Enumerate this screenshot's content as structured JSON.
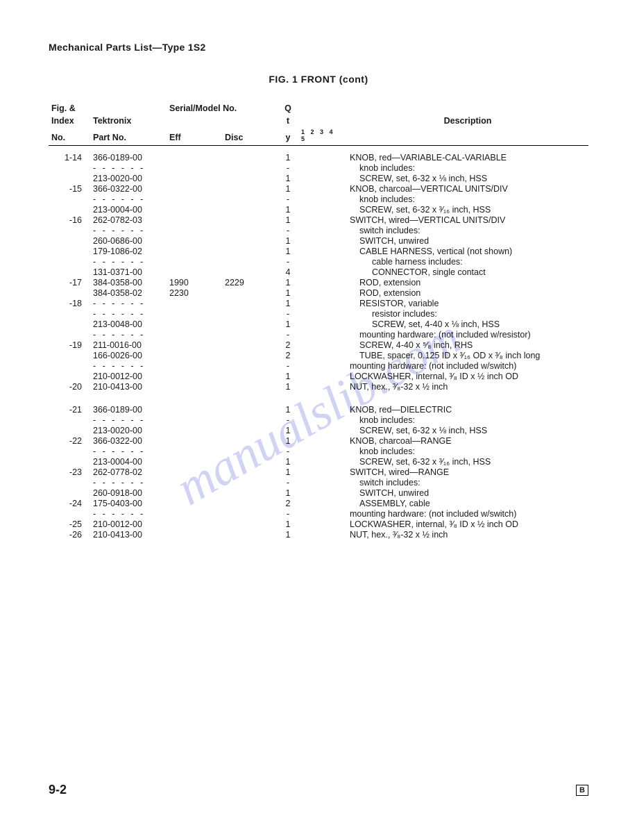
{
  "page_header": "Mechanical Parts List—Type 1S2",
  "figure_title": "FIG. 1   FRONT  (cont)",
  "watermark_text": "manualslib.com",
  "page_number": "9-2",
  "revision_mark": "B",
  "columns": {
    "fig_index_1": "Fig. &",
    "fig_index_2": "Index",
    "fig_index_3": "No.",
    "tek_1": "Tektronix",
    "tek_2": "Part No.",
    "serial_1": "Serial/Model No.",
    "serial_eff": "Eff",
    "serial_disc": "Disc",
    "qty_1": "Q",
    "qty_2": "t",
    "qty_3": "y",
    "steps": "1  2  3  4  5",
    "description": "Description"
  },
  "rows": [
    {
      "idx": "1-14",
      "part": "366-0189-00",
      "eff": "",
      "disc": "",
      "qty": "1",
      "desc": "KNOB, red—VARIABLE-CAL-VARIABLE",
      "indent": 0
    },
    {
      "idx": "",
      "part": "- - - - - -",
      "eff": "",
      "disc": "",
      "qty": "-",
      "desc": "knob includes:",
      "indent": 1,
      "dashes": true
    },
    {
      "idx": "",
      "part": "213-0020-00",
      "eff": "",
      "disc": "",
      "qty": "1",
      "desc": "SCREW, set, 6-32 x ⅛ inch, HSS",
      "indent": 1
    },
    {
      "idx": "-15",
      "part": "366-0322-00",
      "eff": "",
      "disc": "",
      "qty": "1",
      "desc": "KNOB, charcoal—VERTICAL UNITS/DIV",
      "indent": 0
    },
    {
      "idx": "",
      "part": "- - - - - -",
      "eff": "",
      "disc": "",
      "qty": "-",
      "desc": "knob includes:",
      "indent": 1,
      "dashes": true
    },
    {
      "idx": "",
      "part": "213-0004-00",
      "eff": "",
      "disc": "",
      "qty": "1",
      "desc": "SCREW, set, 6-32 x ³⁄₁₆ inch, HSS",
      "indent": 1
    },
    {
      "idx": "-16",
      "part": "262-0782-03",
      "eff": "",
      "disc": "",
      "qty": "1",
      "desc": "SWITCH, wired—VERTICAL UNITS/DIV",
      "indent": 0
    },
    {
      "idx": "",
      "part": "- - - - - -",
      "eff": "",
      "disc": "",
      "qty": "-",
      "desc": "switch includes:",
      "indent": 1,
      "dashes": true
    },
    {
      "idx": "",
      "part": "260-0686-00",
      "eff": "",
      "disc": "",
      "qty": "1",
      "desc": "SWITCH, unwired",
      "indent": 1
    },
    {
      "idx": "",
      "part": "179-1086-02",
      "eff": "",
      "disc": "",
      "qty": "1",
      "desc": "CABLE HARNESS, vertical (not shown)",
      "indent": 1
    },
    {
      "idx": "",
      "part": "- - - - - -",
      "eff": "",
      "disc": "",
      "qty": "-",
      "desc": "cable harness includes:",
      "indent": 2,
      "dashes": true
    },
    {
      "idx": "",
      "part": "131-0371-00",
      "eff": "",
      "disc": "",
      "qty": "4",
      "desc": "CONNECTOR, single contact",
      "indent": 2
    },
    {
      "idx": "-17",
      "part": "384-0358-00",
      "eff": "1990",
      "disc": "2229",
      "qty": "1",
      "desc": "ROD, extension",
      "indent": 1
    },
    {
      "idx": "",
      "part": "384-0358-02",
      "eff": "2230",
      "disc": "",
      "qty": "1",
      "desc": "ROD, extension",
      "indent": 1
    },
    {
      "idx": "-18",
      "part": "- - - - - -",
      "eff": "",
      "disc": "",
      "qty": "1",
      "desc": "RESISTOR, variable",
      "indent": 1,
      "dashes": true
    },
    {
      "idx": "",
      "part": "- - - - - -",
      "eff": "",
      "disc": "",
      "qty": "-",
      "desc": "resistor includes:",
      "indent": 2,
      "dashes": true
    },
    {
      "idx": "",
      "part": "213-0048-00",
      "eff": "",
      "disc": "",
      "qty": "1",
      "desc": "SCREW, set, 4-40 x ⅛ inch, HSS",
      "indent": 2
    },
    {
      "idx": "",
      "part": "- - - - - -",
      "eff": "",
      "disc": "",
      "qty": "-",
      "desc": "mounting hardware: (not included w/resistor)",
      "indent": 1,
      "dashes": true
    },
    {
      "idx": "-19",
      "part": "211-0016-00",
      "eff": "",
      "disc": "",
      "qty": "2",
      "desc": "SCREW, 4-40 x ⁵⁄₈ inch, RHS",
      "indent": 1
    },
    {
      "idx": "",
      "part": "166-0026-00",
      "eff": "",
      "disc": "",
      "qty": "2",
      "desc": "TUBE, spacer, 0.125 ID x ³⁄₁₆ OD x ³⁄₈ inch long",
      "indent": 1
    },
    {
      "idx": "",
      "part": "- - - - - -",
      "eff": "",
      "disc": "",
      "qty": "-",
      "desc": "mounting hardware: (not included w/switch)",
      "indent": 0,
      "dashes": true
    },
    {
      "idx": "",
      "part": "210-0012-00",
      "eff": "",
      "disc": "",
      "qty": "1",
      "desc": "LOCKWASHER, internal, ³⁄₈ ID x ½ inch OD",
      "indent": 0
    },
    {
      "idx": "-20",
      "part": "210-0413-00",
      "eff": "",
      "disc": "",
      "qty": "1",
      "desc": "NUT, hex., ³⁄₈-32 x ½ inch",
      "indent": 0
    },
    {
      "gap": true
    },
    {
      "idx": "-21",
      "part": "366-0189-00",
      "eff": "",
      "disc": "",
      "qty": "1",
      "desc": "KNOB, red—DIELECTRIC",
      "indent": 0
    },
    {
      "idx": "",
      "part": "- - - - - -",
      "eff": "",
      "disc": "",
      "qty": "-",
      "desc": "knob includes:",
      "indent": 1,
      "dashes": true
    },
    {
      "idx": "",
      "part": "213-0020-00",
      "eff": "",
      "disc": "",
      "qty": "1",
      "desc": "SCREW, set, 6-32 x ⅛ inch, HSS",
      "indent": 1
    },
    {
      "idx": "-22",
      "part": "366-0322-00",
      "eff": "",
      "disc": "",
      "qty": "1",
      "desc": "KNOB, charcoal—RANGE",
      "indent": 0
    },
    {
      "idx": "",
      "part": "- - - - - -",
      "eff": "",
      "disc": "",
      "qty": "-",
      "desc": "knob includes:",
      "indent": 1,
      "dashes": true
    },
    {
      "idx": "",
      "part": "213-0004-00",
      "eff": "",
      "disc": "",
      "qty": "1",
      "desc": "SCREW, set, 6-32 x ³⁄₁₆ inch, HSS",
      "indent": 1
    },
    {
      "idx": "-23",
      "part": "262-0778-02",
      "eff": "",
      "disc": "",
      "qty": "1",
      "desc": "SWITCH, wired—RANGE",
      "indent": 0
    },
    {
      "idx": "",
      "part": "- - - - - -",
      "eff": "",
      "disc": "",
      "qty": "-",
      "desc": "switch includes:",
      "indent": 1,
      "dashes": true
    },
    {
      "idx": "",
      "part": "260-0918-00",
      "eff": "",
      "disc": "",
      "qty": "1",
      "desc": "SWITCH, unwired",
      "indent": 1
    },
    {
      "idx": "-24",
      "part": "175-0403-00",
      "eff": "",
      "disc": "",
      "qty": "2",
      "desc": "ASSEMBLY, cable",
      "indent": 1
    },
    {
      "idx": "",
      "part": "- - - - - -",
      "eff": "",
      "disc": "",
      "qty": "-",
      "desc": "mounting hardware: (not included w/switch)",
      "indent": 0,
      "dashes": true
    },
    {
      "idx": "-25",
      "part": "210-0012-00",
      "eff": "",
      "disc": "",
      "qty": "1",
      "desc": "LOCKWASHER, internal, ³⁄₈ ID x ½ inch OD",
      "indent": 0
    },
    {
      "idx": "-26",
      "part": "210-0413-00",
      "eff": "",
      "disc": "",
      "qty": "1",
      "desc": "NUT, hex., ³⁄₈-32 x ½ inch",
      "indent": 0
    }
  ]
}
